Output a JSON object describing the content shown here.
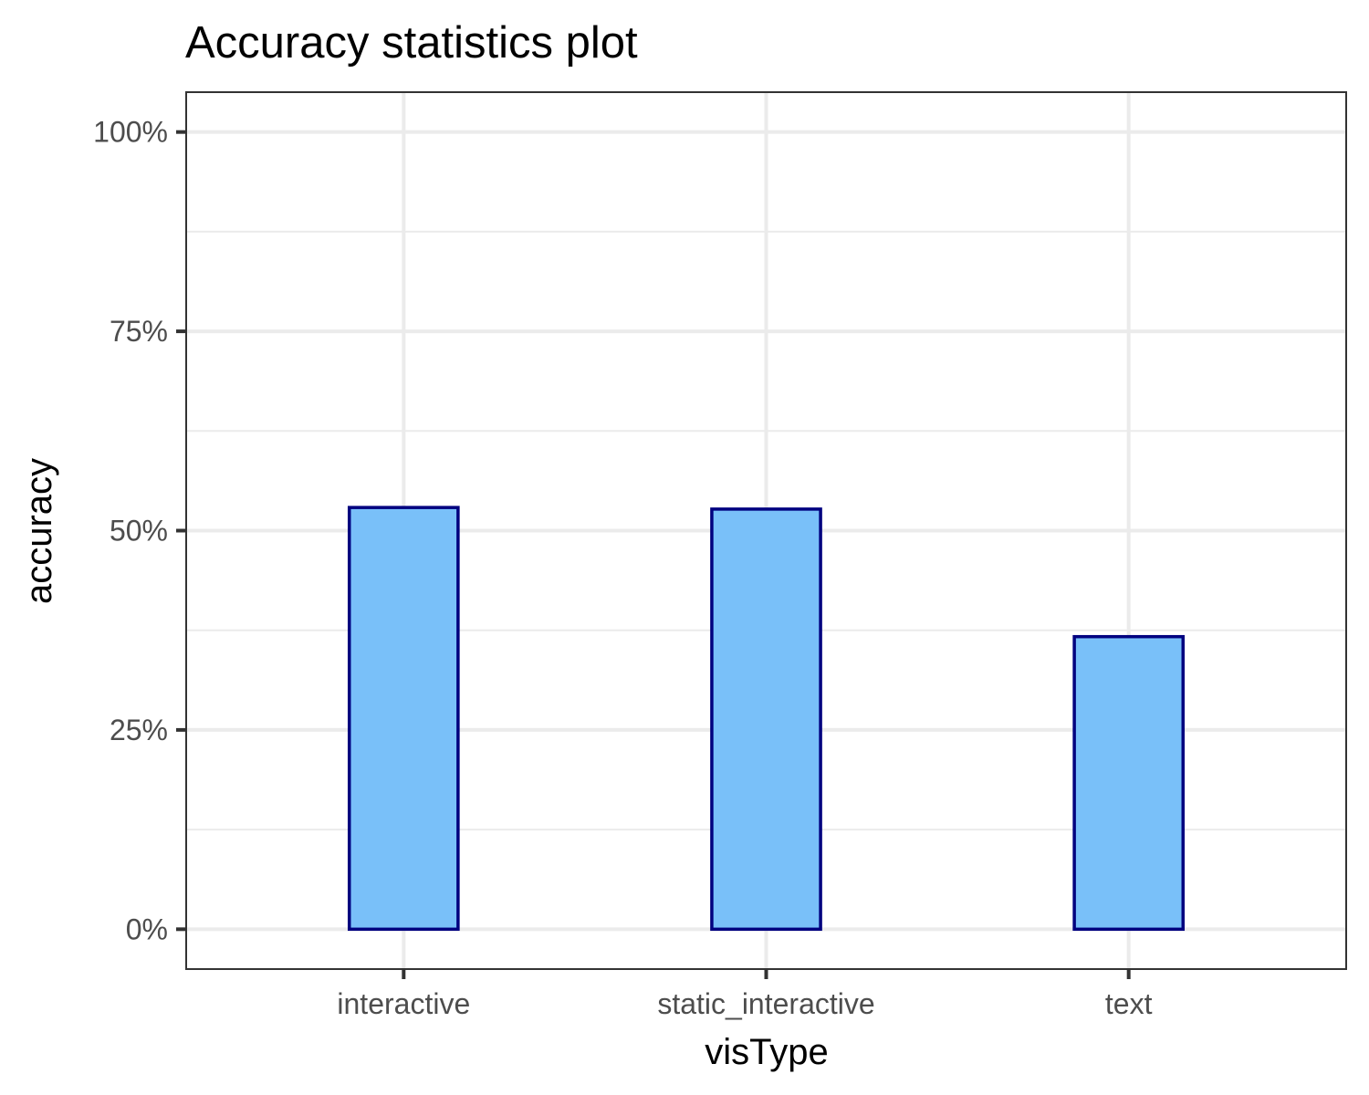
{
  "chart_data": {
    "type": "bar",
    "title": "Accuracy statistics plot",
    "xlabel": "visType",
    "ylabel": "accuracy",
    "categories": [
      "interactive",
      "static_interactive",
      "text"
    ],
    "values": [
      0.529,
      0.527,
      0.367
    ],
    "ylim": [
      -0.05,
      1.05
    ],
    "y_ticks": [
      0,
      0.25,
      0.5,
      0.75,
      1.0
    ],
    "y_tick_labels": [
      "0%",
      "25%",
      "50%",
      "75%",
      "100%"
    ],
    "y_minor_ticks": [
      0.125,
      0.375,
      0.625,
      0.875
    ],
    "grid": true,
    "legend": "none",
    "colors": {
      "bar_fill": "#79c0f9",
      "bar_stroke": "#00007f",
      "grid": "#ebebeb",
      "panel_border": "#333333",
      "tick_label": "#4d4d4d",
      "text": "#000000"
    }
  }
}
